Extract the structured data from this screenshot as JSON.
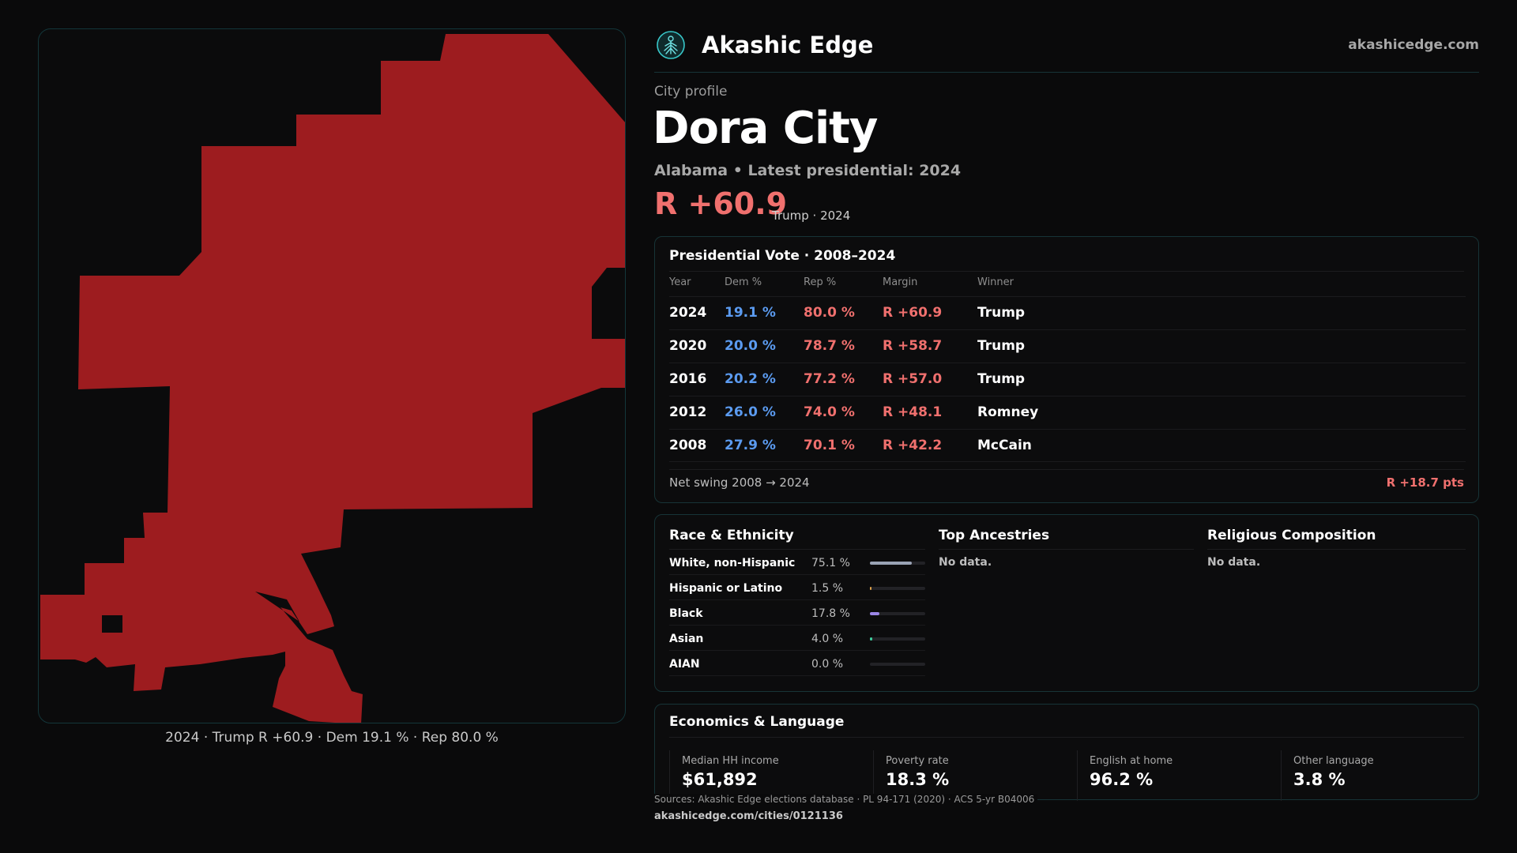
{
  "map": {
    "fill_color": "#9d1c1f",
    "caption": "2024 · Trump R +60.9 · Dem 19.1 % · Rep 80.0 %"
  },
  "header": {
    "logo_icon": "tree-of-life-icon",
    "brand": "Akashic Edge",
    "url": "akashicedge.com"
  },
  "profile": {
    "eyebrow": "City profile",
    "city": "Dora City",
    "subtitle": "Alabama • Latest presidential: 2024",
    "margin": "R +60.9",
    "margin_note": "Trump · 2024"
  },
  "vote": {
    "title": "Presidential Vote · 2008–2024",
    "columns": [
      "Year",
      "Dem %",
      "Rep %",
      "Margin",
      "Winner"
    ],
    "rows": [
      {
        "year": "2024",
        "dem": "19.1 %",
        "rep": "80.0 %",
        "margin": "R +60.9",
        "winner": "Trump"
      },
      {
        "year": "2020",
        "dem": "20.0 %",
        "rep": "78.7 %",
        "margin": "R +58.7",
        "winner": "Trump"
      },
      {
        "year": "2016",
        "dem": "20.2 %",
        "rep": "77.2 %",
        "margin": "R +57.0",
        "winner": "Trump"
      },
      {
        "year": "2012",
        "dem": "26.0 %",
        "rep": "74.0 %",
        "margin": "R +48.1",
        "winner": "Romney"
      },
      {
        "year": "2008",
        "dem": "27.9 %",
        "rep": "70.1 %",
        "margin": "R +42.2",
        "winner": "McCain"
      }
    ],
    "swing_label": "Net swing 2008 → 2024",
    "swing_value": "R +18.7 pts"
  },
  "race": {
    "title": "Race & Ethnicity",
    "rows": [
      {
        "label": "White, non-Hispanic",
        "pct": "75.1 %",
        "value": 75.1,
        "color": "#9aa3b5"
      },
      {
        "label": "Hispanic or Latino",
        "pct": "1.5 %",
        "value": 1.5,
        "color": "#e0a24a"
      },
      {
        "label": "Black",
        "pct": "17.8 %",
        "value": 17.8,
        "color": "#9b86e6"
      },
      {
        "label": "Asian",
        "pct": "4.0 %",
        "value": 4.0,
        "color": "#3fcf9e"
      },
      {
        "label": "AIAN",
        "pct": "0.0 %",
        "value": 0.0,
        "color": "#d46a6a"
      }
    ]
  },
  "ancestry": {
    "title": "Top Ancestries",
    "empty": "No data."
  },
  "religion": {
    "title": "Religious Composition",
    "empty": "No data."
  },
  "economics": {
    "title": "Economics & Language",
    "items": [
      {
        "label": "Median HH income",
        "value": "$61,892"
      },
      {
        "label": "Poverty rate",
        "value": "18.3 %"
      },
      {
        "label": "English at home",
        "value": "96.2 %"
      },
      {
        "label": "Other language",
        "value": "3.8 %"
      }
    ]
  },
  "footer": {
    "sources": "Sources: Akashic Edge elections database · PL 94-171 (2020) · ACS 5-yr B04006",
    "url": "akashicedge.com/cities/0121136"
  }
}
